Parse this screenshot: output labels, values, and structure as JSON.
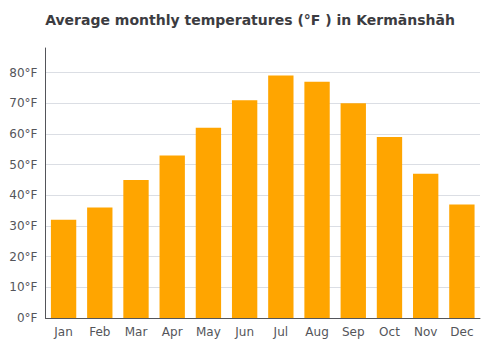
{
  "chart_data": {
    "type": "bar",
    "title": "Average monthly temperatures (°F ) in Kermānshāh",
    "categories": [
      "Jan",
      "Feb",
      "Mar",
      "Apr",
      "May",
      "Jun",
      "Jul",
      "Aug",
      "Sep",
      "Oct",
      "Nov",
      "Dec"
    ],
    "values": [
      32,
      36,
      45,
      53,
      62,
      71,
      79,
      77,
      70,
      59,
      47,
      37
    ],
    "color": "#FFA500",
    "ylim": [
      0,
      88
    ],
    "yticks": [
      {
        "value": 0,
        "label": "0°F"
      },
      {
        "value": 10,
        "label": "10°F"
      },
      {
        "value": 20,
        "label": "20°F"
      },
      {
        "value": 30,
        "label": "30°F"
      },
      {
        "value": 40,
        "label": "40°F"
      },
      {
        "value": 50,
        "label": "50°F"
      },
      {
        "value": 60,
        "label": "60°F"
      },
      {
        "value": 70,
        "label": "70°F"
      },
      {
        "value": 80,
        "label": "80°F"
      }
    ],
    "grid": true
  }
}
